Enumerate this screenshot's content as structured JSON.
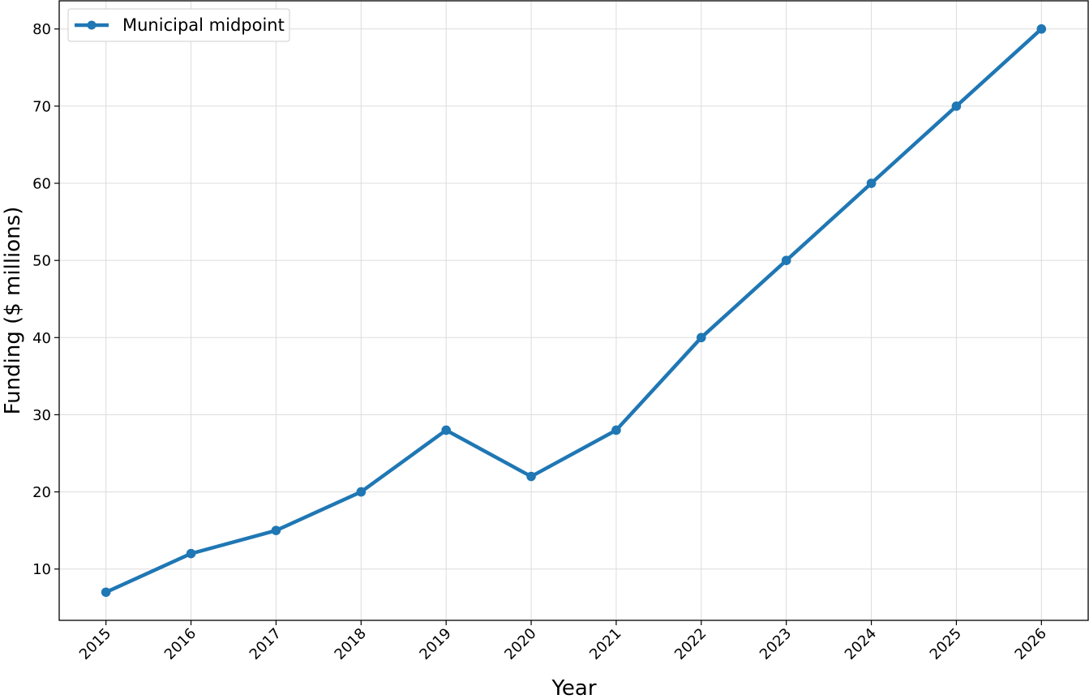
{
  "chart_data": {
    "type": "line",
    "title": "",
    "xlabel": "Year",
    "ylabel": "Funding ($ millions)",
    "x": [
      2015,
      2016,
      2017,
      2018,
      2019,
      2020,
      2021,
      2022,
      2023,
      2024,
      2025,
      2026
    ],
    "series": [
      {
        "name": "Municipal midpoint",
        "color": "#1f77b4",
        "values": [
          7,
          12,
          15,
          20,
          28,
          22,
          28,
          40,
          50,
          60,
          70,
          80
        ]
      }
    ],
    "y_ticks": [
      10,
      20,
      30,
      40,
      50,
      60,
      70,
      80
    ],
    "ylim": [
      3.35,
      83.65
    ],
    "xlim": [
      2014.45,
      2026.55
    ],
    "grid": true,
    "legend": "top-left"
  }
}
